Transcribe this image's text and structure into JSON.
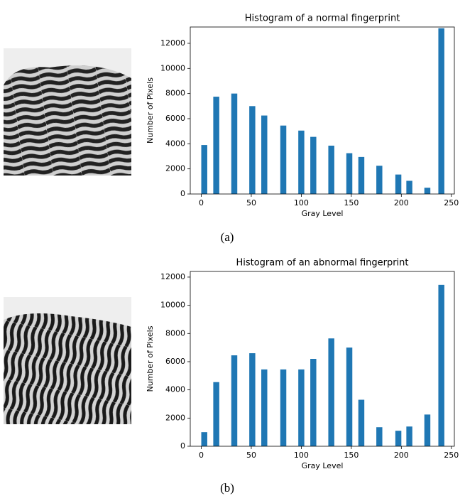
{
  "chart_data": [
    {
      "type": "bar",
      "title": "Histogram of a normal fingerprint",
      "xlabel": "Gray Level",
      "ylabel": "Number of Pixels",
      "caption": "(a)",
      "x": [
        3,
        15,
        33,
        51,
        63,
        82,
        100,
        112,
        130,
        148,
        160,
        178,
        197,
        208,
        226,
        240
      ],
      "values": [
        3900,
        7750,
        8000,
        7000,
        6250,
        5450,
        5050,
        4550,
        3850,
        3250,
        2950,
        2250,
        1550,
        1050,
        500,
        13200
      ],
      "color": "#1f77b4",
      "xlim": [
        -11,
        253
      ],
      "ylim": [
        0,
        13300
      ],
      "xticks": [
        0,
        50,
        100,
        150,
        200,
        250
      ],
      "yticks": [
        0,
        2000,
        4000,
        6000,
        8000,
        10000,
        12000
      ]
    },
    {
      "type": "bar",
      "title": "Histogram of an abnormal fingerprint",
      "xlabel": "Gray Level",
      "ylabel": "Number of Pixels",
      "caption": "(b)",
      "x": [
        3,
        15,
        33,
        51,
        63,
        82,
        100,
        112,
        130,
        148,
        160,
        178,
        197,
        208,
        226,
        240
      ],
      "values": [
        1000,
        4550,
        6450,
        6600,
        5450,
        5450,
        5450,
        6200,
        7650,
        7000,
        3300,
        1350,
        1100,
        1400,
        2250,
        11450
      ],
      "color": "#1f77b4",
      "xlim": [
        -11,
        253
      ],
      "ylim": [
        0,
        12400
      ],
      "xticks": [
        0,
        50,
        100,
        150,
        200,
        250
      ],
      "yticks": [
        0,
        2000,
        4000,
        6000,
        8000,
        10000,
        12000
      ]
    }
  ]
}
